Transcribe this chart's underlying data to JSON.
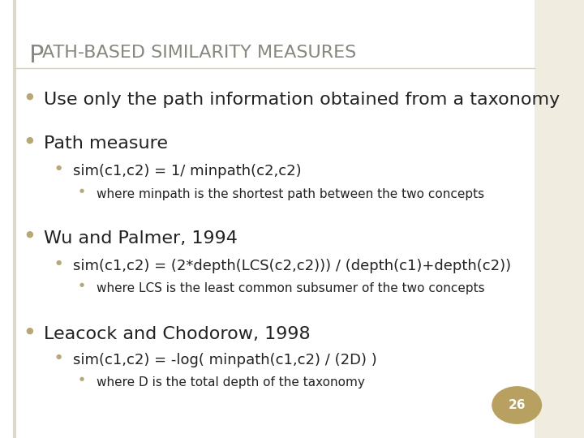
{
  "title_first": "P",
  "title_rest": "ATH-BASED SIMILARITY MEASURES",
  "title_color": "#888880",
  "background_color": "#f0ece0",
  "content_bg": "#ffffff",
  "border_color": "#d4cfc0",
  "text_color": "#222222",
  "bullet_color": "#b8a878",
  "page_number": "26",
  "page_circle_color": "#b8a060",
  "page_number_color": "#ffffff",
  "lines": [
    {
      "level": 0,
      "text": "Use only the path information obtained from a taxonomy",
      "bold": false
    },
    {
      "level": 0,
      "text": "Path measure",
      "bold": false
    },
    {
      "level": 1,
      "text": "sim(c1,c2) = 1/ minpath(c2,c2)",
      "bold": false
    },
    {
      "level": 2,
      "text": "where minpath is the shortest path between the two concepts",
      "bold": false
    },
    {
      "level": 0,
      "text": "Wu and Palmer, 1994",
      "bold": false
    },
    {
      "level": 1,
      "text": "sim(c1,c2) = (2*depth(LCS(c2,c2))) / (depth(c1)+depth(c2))",
      "bold": false
    },
    {
      "level": 2,
      "text": "where LCS is the least common subsumer of the two concepts",
      "bold": false
    },
    {
      "level": 0,
      "text": "Leacock and Chodorow, 1998",
      "bold": false
    },
    {
      "level": 1,
      "text": "sim(c1,c2) = -log( minpath(c1,c2) / (2D) )",
      "bold": false
    },
    {
      "level": 2,
      "text": "where D is the total depth of the taxonomy",
      "bold": false
    }
  ],
  "font_sizes": {
    "title_first": 22,
    "title_rest": 16,
    "level0": 16,
    "level1": 13,
    "level2": 11
  }
}
